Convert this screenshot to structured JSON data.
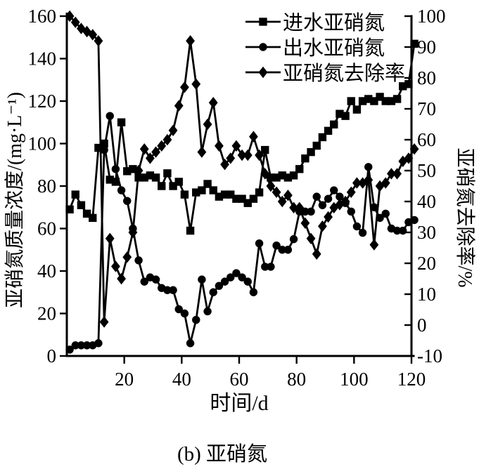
{
  "figure": {
    "caption": "(b) 亚硝氮",
    "background_color": "#ffffff",
    "ink_color": "#000000"
  },
  "chart_data": {
    "type": "line",
    "title": "",
    "xlabel": "时间/d",
    "ylabel_left": "亚硝氮质量浓度/(mg·L⁻¹)",
    "ylabel_right": "亚硝氮去除率/%",
    "grid": false,
    "legend_position": "top-right-inside",
    "x_axis": {
      "min": 0,
      "max": 120,
      "tick_step": 20
    },
    "y_axis_left": {
      "min": 0,
      "max": 160,
      "tick_step": 20
    },
    "y_axis_right": {
      "min": -10,
      "max": 100,
      "tick_step": 10
    },
    "x": [
      1,
      3,
      5,
      7,
      9,
      11,
      13,
      15,
      17,
      19,
      21,
      23,
      25,
      27,
      29,
      31,
      33,
      35,
      37,
      39,
      41,
      43,
      45,
      47,
      49,
      51,
      53,
      55,
      57,
      59,
      61,
      63,
      65,
      67,
      69,
      71,
      73,
      75,
      77,
      79,
      81,
      83,
      85,
      87,
      89,
      91,
      93,
      95,
      97,
      99,
      101,
      103,
      105,
      107,
      109,
      111,
      113,
      115,
      117,
      119,
      121
    ],
    "series": [
      {
        "name": "进水亚硝氮",
        "marker": "square",
        "axis": "left",
        "values": [
          69,
          76,
          71,
          67,
          65,
          98,
          100,
          83,
          82,
          110,
          87,
          88,
          84,
          84,
          85,
          84,
          80,
          86,
          80,
          82,
          76,
          59,
          77,
          78,
          81,
          78,
          75,
          76,
          76,
          74,
          74,
          72,
          74,
          77,
          97,
          84,
          84,
          85,
          84,
          85,
          88,
          93,
          96,
          99,
          103,
          106,
          109,
          114,
          113,
          120,
          116,
          120,
          121,
          120,
          122,
          120,
          120,
          121,
          127,
          128,
          147
        ]
      },
      {
        "name": "出水亚硝氮",
        "marker": "circle",
        "axis": "left",
        "values": [
          3,
          5,
          5,
          5,
          5,
          6,
          97,
          113,
          88,
          78,
          73,
          60,
          45,
          35,
          37,
          36,
          32,
          31,
          31,
          22,
          20,
          6,
          17,
          36,
          21,
          30,
          33,
          35,
          37,
          39,
          37,
          35,
          30,
          53,
          42,
          42,
          52,
          50,
          50,
          55,
          68,
          68,
          68,
          75,
          71,
          74,
          78,
          75,
          72,
          68,
          61,
          58,
          89,
          70,
          65,
          67,
          60,
          59,
          59,
          63,
          64
        ]
      },
      {
        "name": "亚硝氮去除率",
        "marker": "diamond",
        "axis": "right",
        "values": [
          100,
          98,
          96,
          95,
          94,
          92,
          1,
          28,
          19,
          15,
          22,
          30,
          50,
          57,
          54,
          56,
          58,
          60,
          63,
          71,
          77,
          92,
          78,
          56,
          65,
          72,
          58,
          52,
          54,
          58,
          55,
          55,
          61,
          55,
          49,
          45,
          43,
          40,
          42,
          38,
          38,
          33,
          28,
          23,
          32,
          35,
          38,
          39,
          40,
          43,
          46,
          46,
          47,
          26,
          45,
          46,
          49,
          49,
          53,
          54,
          57
        ]
      }
    ]
  }
}
